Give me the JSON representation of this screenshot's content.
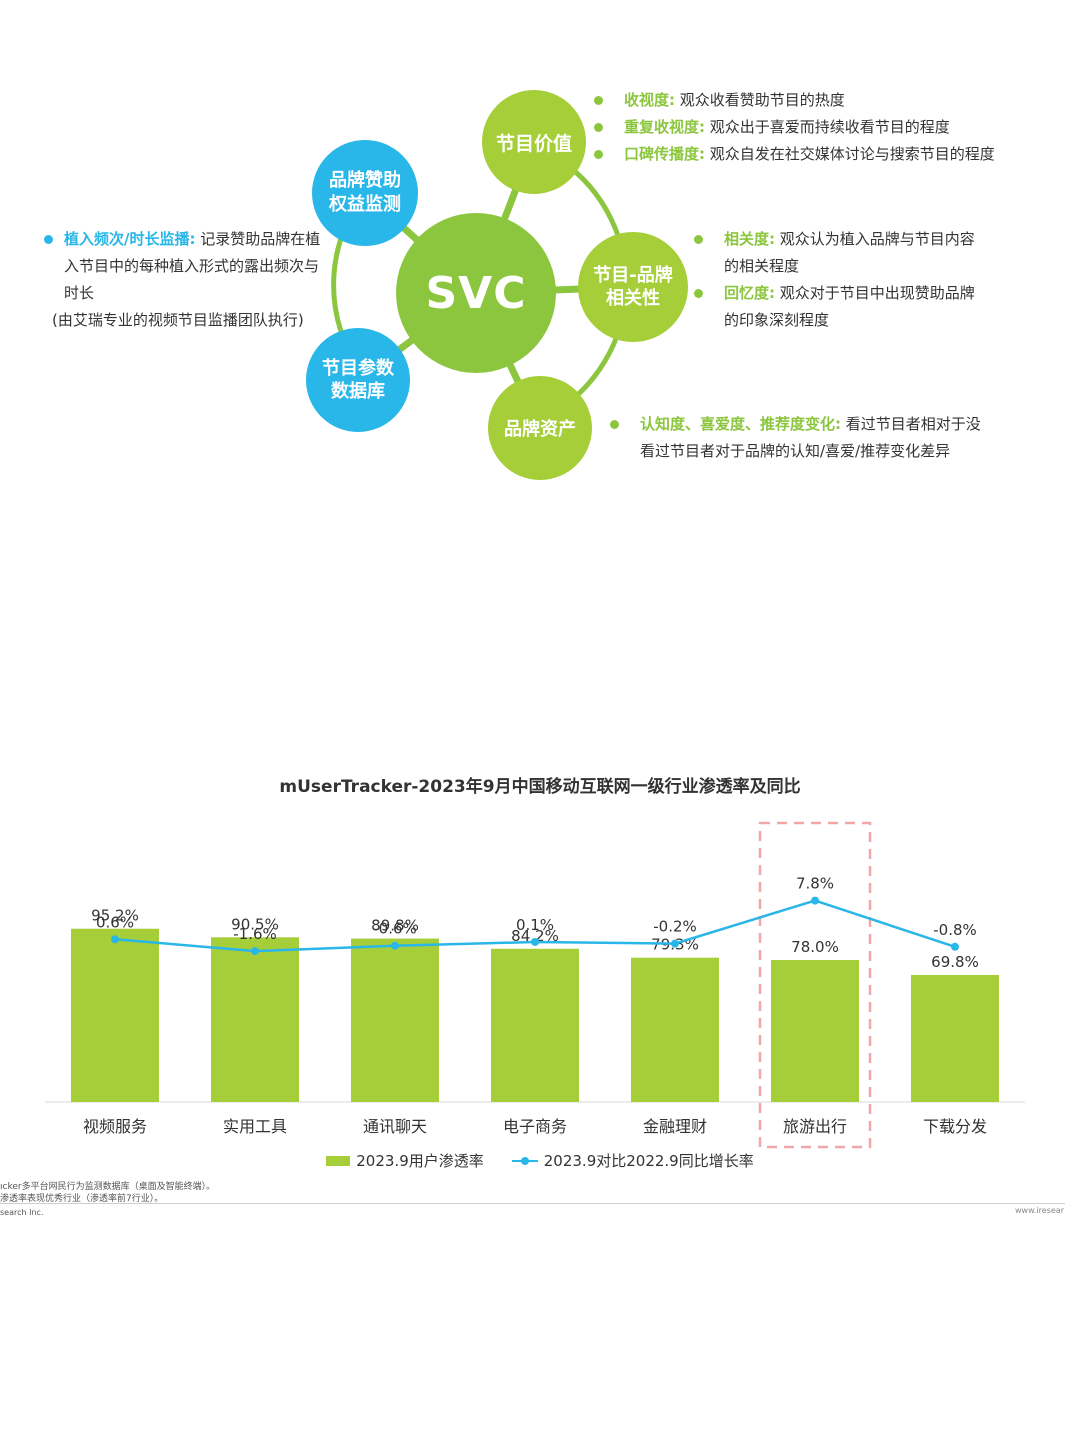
{
  "diagram": {
    "center": "SVC",
    "nodes": {
      "program_value": "节目价值",
      "brand_monitor": "品牌赞助\n权益监测",
      "brand_relevance": "节目-品牌\n相关性",
      "program_db": "节目参数\n数据库",
      "brand_asset": "品牌资产"
    },
    "program_value_items": [
      {
        "key": "收视度:",
        "text": "观众收看赞助节目的热度"
      },
      {
        "key": "重复收视度:",
        "text": "观众出于喜爱而持续收看节目的程度"
      },
      {
        "key": "口碑传播度:",
        "text": "观众自发在社交媒体讨论与搜索节目的程度"
      }
    ],
    "relevance_items": [
      {
        "key": "相关度:",
        "line1": "观众认为植入品牌与节目内容",
        "line2": "的相关程度"
      },
      {
        "key": "回忆度:",
        "line1": "观众对于节目中出现赞助品牌",
        "line2": "的印象深刻程度"
      }
    ],
    "asset_item": {
      "key": "认知度、喜爱度、推荐度变化:",
      "line1": "看过节目者相对于没",
      "line2": "看过节目者对于品牌的认知/喜爱/推荐变化差异"
    },
    "monitor_item": {
      "key": "植入频次/时长监播:",
      "line1": "记录赞助品牌在植",
      "line2": "入节目中的每种植入形式的露出频次与",
      "line3": "时长",
      "note": "(由艾瑞专业的视频节目监播团队执行)"
    },
    "colors": {
      "green": "#8cc63f",
      "lime": "#a6ce39",
      "blue": "#29b6e8"
    }
  },
  "chart_data": {
    "type": "bar",
    "title": "mUserTracker-2023年9月中国移动互联网一级行业渗透率及同比",
    "categories": [
      "视频服务",
      "实用工具",
      "通讯聊天",
      "电子商务",
      "金融理财",
      "旅游出行",
      "下载分发"
    ],
    "series": [
      {
        "name": "2023.9用户渗透率",
        "type": "bar",
        "values": [
          95.2,
          90.5,
          89.8,
          84.2,
          79.3,
          78.0,
          69.8
        ],
        "labels": [
          "95.2%",
          "90.5%",
          "89.8%",
          "84.2%",
          "79.3%",
          "78.0%",
          "69.8%"
        ],
        "color": "#a6ce39"
      },
      {
        "name": "2023.9对比2022.9同比增长率",
        "type": "line",
        "values": [
          0.6,
          -1.6,
          -0.6,
          0.1,
          -0.2,
          7.8,
          -0.8
        ],
        "labels": [
          "0.6%",
          "-1.6%",
          "-0.6%",
          "0.1%",
          "-0.2%",
          "7.8%",
          "-0.8%"
        ],
        "color": "#29b6e8"
      }
    ],
    "highlight_category": "旅游出行",
    "bar_ylim": [
      0,
      100
    ],
    "line_ylim": [
      -20,
      12
    ],
    "legend_position": "bottom"
  },
  "footer": {
    "note1": "ıcker多平台网民行为监测数据库（桌面及智能终端）。",
    "note2": "渗透率表现优秀行业（渗透率前7行业）。",
    "note3": "search Inc.",
    "site": "www.iresear"
  }
}
